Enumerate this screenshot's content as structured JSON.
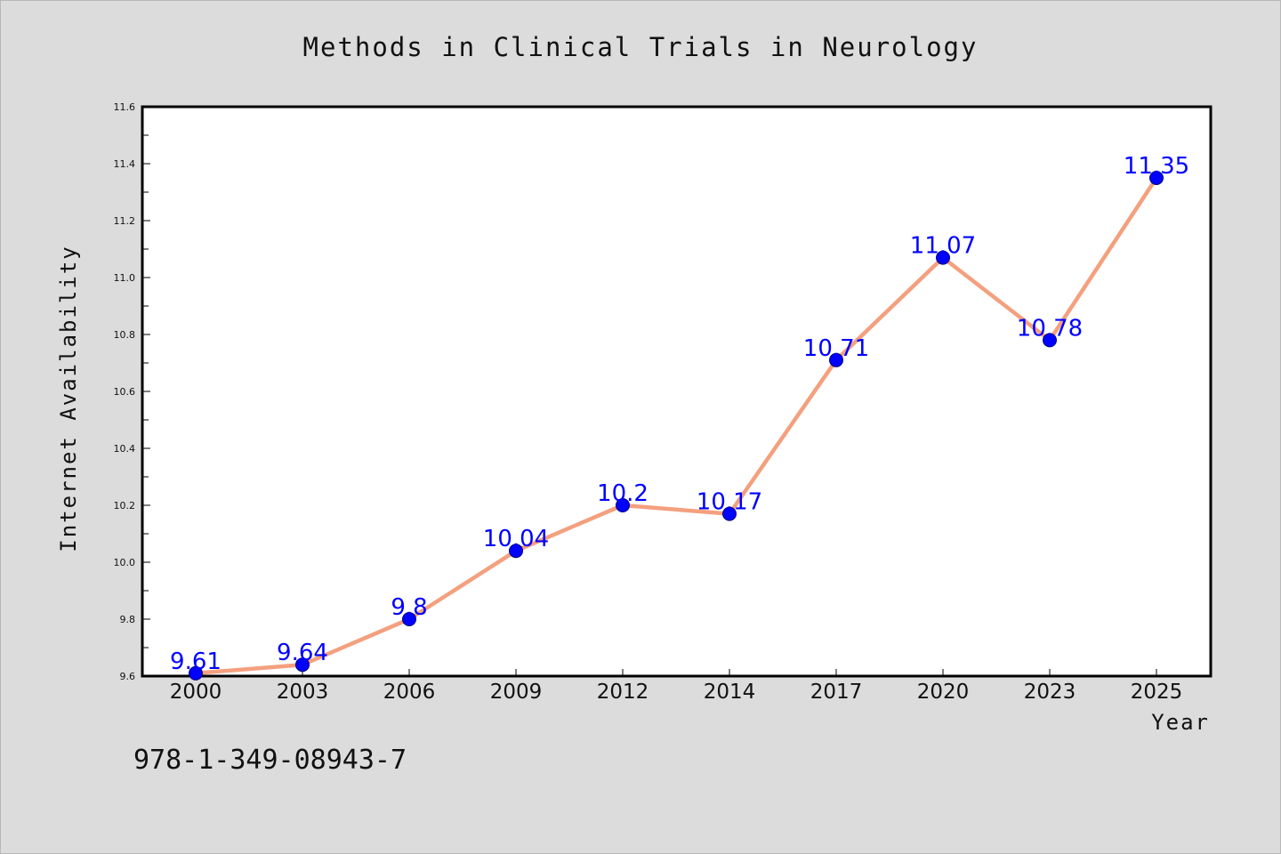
{
  "chart_data": {
    "type": "line",
    "title": "Methods in Clinical Trials in Neurology",
    "xlabel": "Year",
    "ylabel": "Internet Availability",
    "categories": [
      "2000",
      "2003",
      "2006",
      "2009",
      "2012",
      "2014",
      "2017",
      "2020",
      "2023",
      "2025"
    ],
    "series": [
      {
        "values": [
          9.61,
          9.64,
          9.8,
          10.04,
          10.2,
          10.17,
          10.71,
          11.07,
          10.78,
          11.35
        ],
        "value_labels": [
          "9.61",
          "9.64",
          "9.8",
          "10.04",
          "10.2",
          "10.17",
          "10.71",
          "11.07",
          "10.78",
          "11.35"
        ],
        "line_color": "#f4a07e",
        "marker_color": "#0000ff"
      }
    ],
    "ylim": [
      9.6,
      11.6
    ],
    "yticks": [
      "9.6",
      "9.8",
      "10.0",
      "10.2",
      "10.4",
      "10.6",
      "10.8",
      "11.0",
      "11.2",
      "11.4",
      "11.6"
    ],
    "grid": false,
    "data_labels": true
  },
  "footer": {
    "isbn": "978-1-349-08943-7"
  },
  "colors": {
    "background": "#dcdcdc",
    "plot_area": "#ffffff",
    "axis": "#000000",
    "label": "#0000ff"
  }
}
